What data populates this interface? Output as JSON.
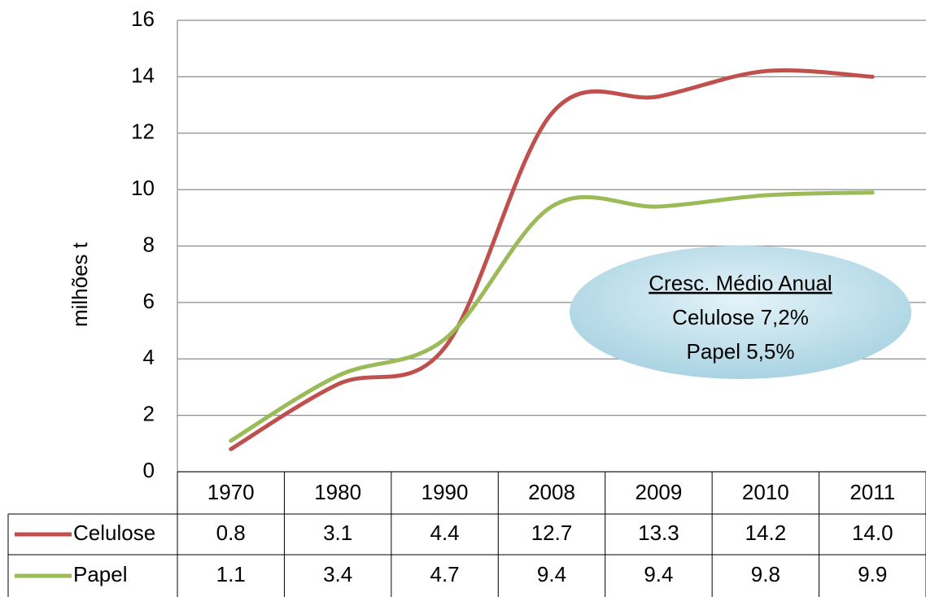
{
  "chart_data": {
    "type": "line",
    "y_label": "milhões t",
    "categories": [
      "1970",
      "1980",
      "1990",
      "2008",
      "2009",
      "2010",
      "2011"
    ],
    "series": [
      {
        "name": "Celulose",
        "color": "#c0504d",
        "values": [
          0.8,
          3.1,
          4.4,
          12.7,
          13.3,
          14.2,
          14.0
        ],
        "value_labels": [
          "0.8",
          "3.1",
          "4.4",
          "12.7",
          "13.3",
          "14.2",
          "14.0"
        ]
      },
      {
        "name": "Papel",
        "color": "#9bbb59",
        "values": [
          1.1,
          3.4,
          4.7,
          9.4,
          9.4,
          9.8,
          9.9
        ]
      }
    ],
    "ylim": [
      0,
      16
    ],
    "yticks": [
      0,
      2,
      4,
      6,
      8,
      10,
      12,
      14,
      16
    ],
    "grid": true,
    "annotation": {
      "title": "Cresc. Médio Anual",
      "lines": [
        "Celulose 7,2%",
        "Papel 5,5%"
      ]
    }
  }
}
